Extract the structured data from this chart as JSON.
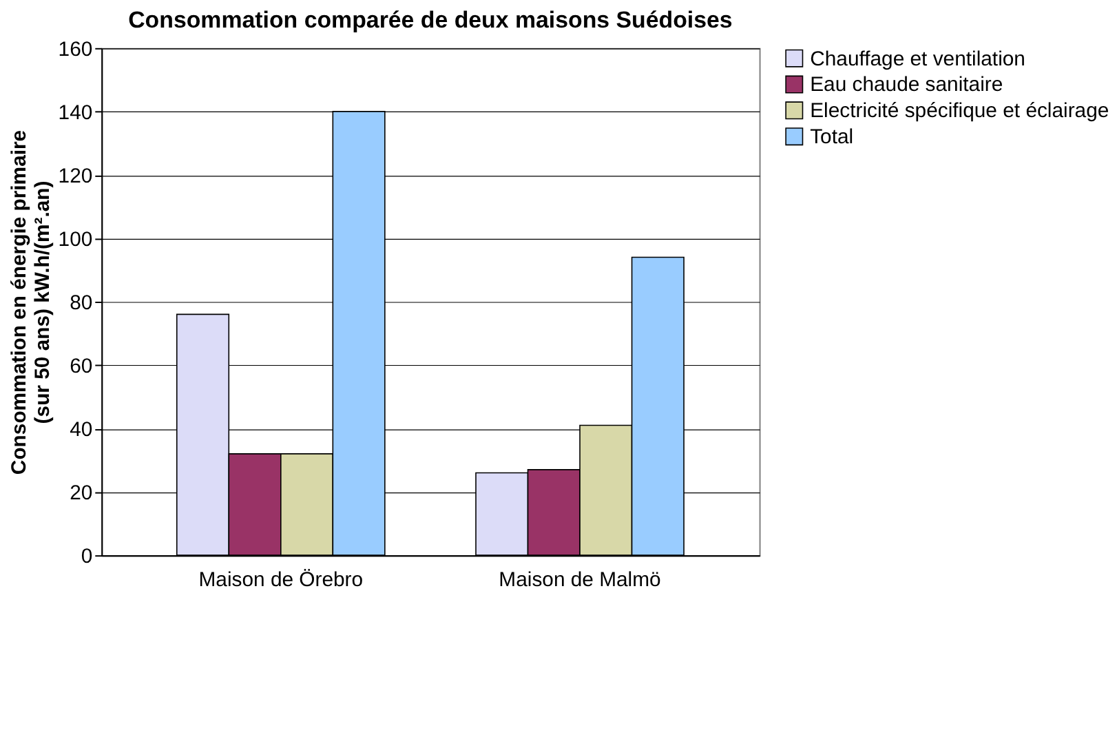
{
  "chart_data": {
    "type": "bar",
    "title": "Consommation comparée de deux maisons Suédoises",
    "ylabel": "Consommation en énergie primaire\n(sur 50 ans) kW.h/(m².an)",
    "categories": [
      "Maison de Örebro",
      "Maison de Malmö"
    ],
    "series": [
      {
        "name": "Chauffage et ventilation",
        "color": "#dcdcf8",
        "values": [
          76,
          26
        ]
      },
      {
        "name": "Eau chaude sanitaire",
        "color": "#993366",
        "values": [
          32,
          27
        ]
      },
      {
        "name": "Electricité spécifique et éclairage",
        "color": "#d8d8a8",
        "values": [
          32,
          41
        ]
      },
      {
        "name": "Total",
        "color": "#99ccff",
        "values": [
          140,
          94
        ]
      }
    ],
    "ylim": [
      0,
      160
    ],
    "yticks": [
      0,
      20,
      40,
      60,
      80,
      100,
      120,
      140,
      160
    ],
    "grid": "y",
    "legend": "right"
  }
}
